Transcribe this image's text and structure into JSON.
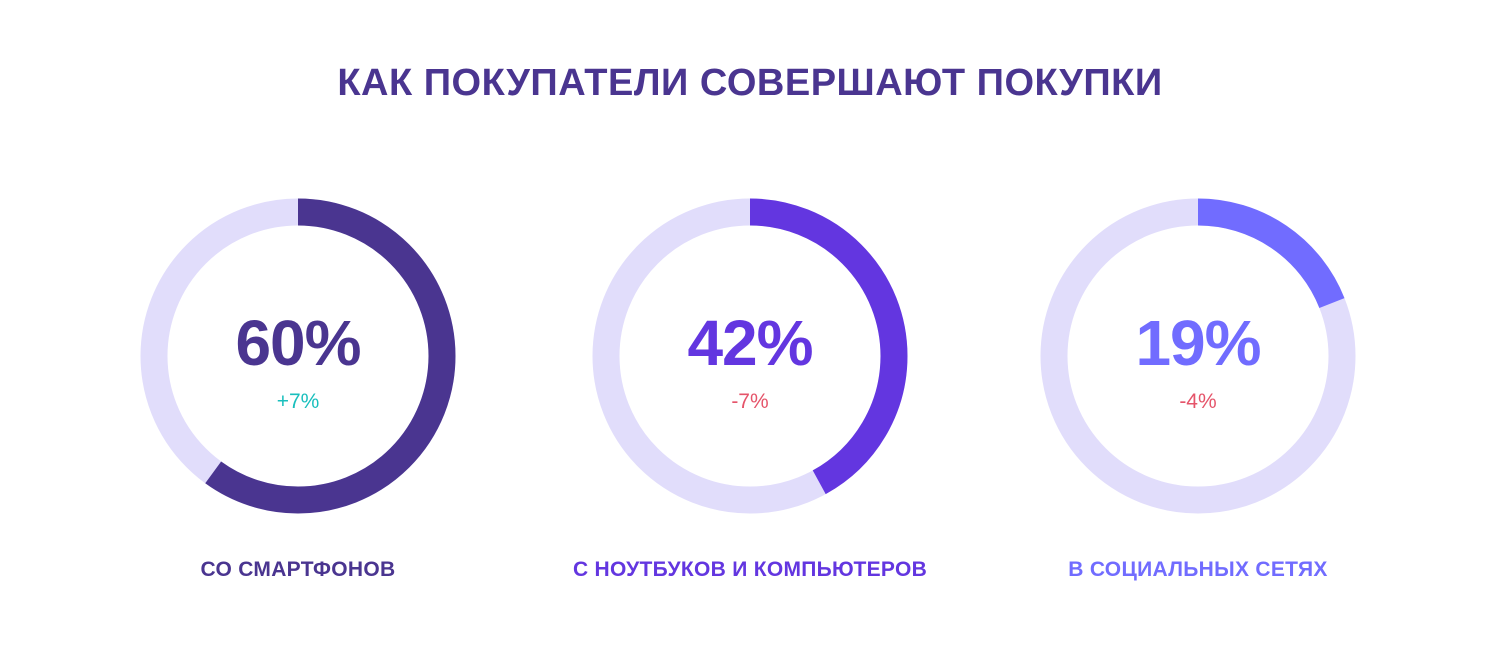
{
  "title": "КАК ПОКУПАТЕЛИ СОВЕРШАЮТ ПОКУПКИ",
  "colors": {
    "track": "#e1ddfb",
    "positive": "#19bfbd",
    "negative": "#e5546a"
  },
  "chart_data": {
    "type": "donut",
    "title": "КАК ПОКУПАТЕЛИ СОВЕРШАЮТ ПОКУПКИ",
    "items": [
      {
        "label": "СО СМАРТФОНОВ",
        "value": 60,
        "display": "60%",
        "change": "+7%",
        "change_sign": "positive",
        "color": "#4a3590"
      },
      {
        "label": "С НОУТБУКОВ И КОМПЬЮТЕРОВ",
        "value": 42,
        "display": "42%",
        "change": "-7%",
        "change_sign": "negative",
        "color": "#6336e0"
      },
      {
        "label": "В СОЦИАЛЬНЫХ СЕТЯХ",
        "value": 19,
        "display": "19%",
        "change": "-4%",
        "change_sign": "negative",
        "color": "#716cff"
      }
    ]
  }
}
